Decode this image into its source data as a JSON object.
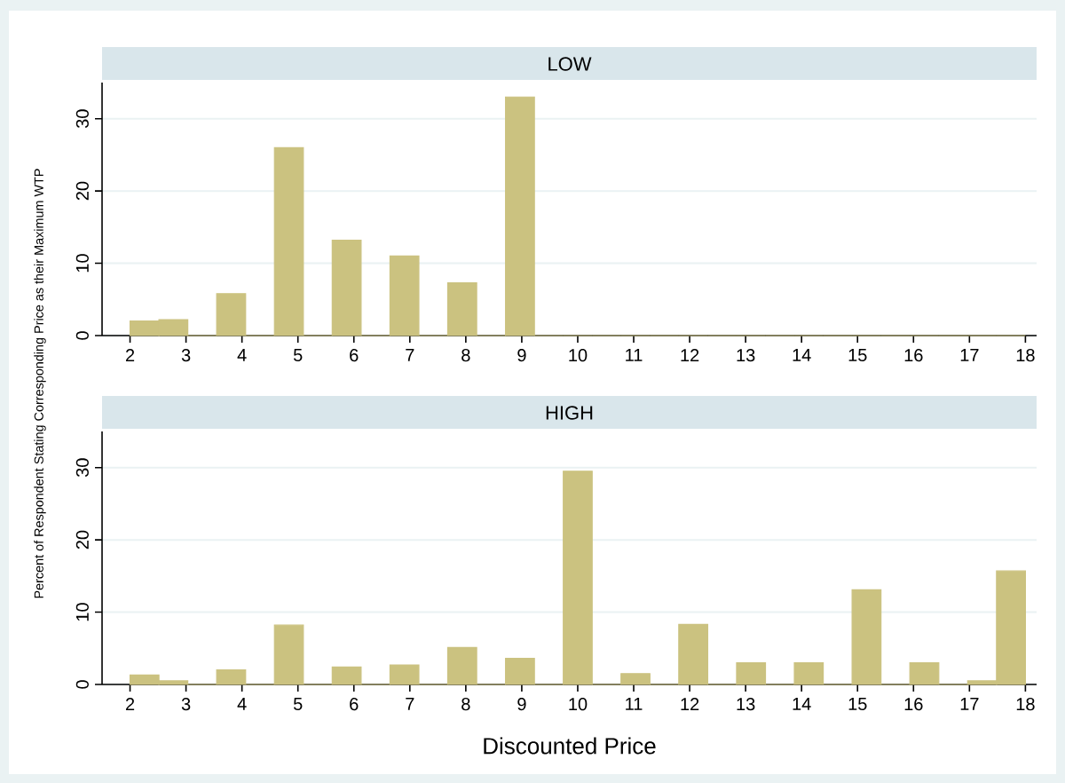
{
  "chart_data": [
    {
      "type": "histogram",
      "title": "LOW",
      "ylabel": "Percent of Respondent Stating Corresponding Price as their Maximum WTP",
      "bins": [
        2,
        2.516,
        3.032,
        3.548,
        4.065,
        4.581,
        5.097,
        5.613,
        6.129,
        6.645,
        7.161,
        7.677,
        8.194,
        8.71,
        9.226,
        9.742,
        10.258,
        10.774,
        11.29,
        11.806,
        12.323,
        12.839,
        13.355,
        13.871,
        14.387,
        14.903,
        15.419,
        15.935,
        16.452,
        16.968,
        17.484,
        18
      ],
      "values": [
        2.0,
        2.2,
        0,
        5.8,
        0,
        26.0,
        0,
        13.2,
        0,
        11.0,
        0,
        7.3,
        0,
        33.0,
        0,
        0,
        0,
        0,
        0,
        0,
        0,
        0,
        0,
        0,
        0,
        0,
        0,
        0,
        0,
        0,
        0
      ],
      "color": "#cbc280",
      "xlim": [
        1.5,
        18.2
      ],
      "ylim": [
        0,
        35
      ],
      "xticks": [
        2,
        3,
        4,
        5,
        6,
        7,
        8,
        9,
        10,
        11,
        12,
        13,
        14,
        15,
        16,
        17,
        18
      ],
      "yticks": [
        0,
        10,
        20,
        30
      ],
      "grid": "y"
    },
    {
      "type": "histogram",
      "title": "HIGH",
      "xlabel": "Discounted Price",
      "bins": [
        2,
        2.516,
        3.032,
        3.548,
        4.065,
        4.581,
        5.097,
        5.613,
        6.129,
        6.645,
        7.161,
        7.677,
        8.194,
        8.71,
        9.226,
        9.742,
        10.258,
        10.774,
        11.29,
        11.806,
        12.323,
        12.839,
        13.355,
        13.871,
        14.387,
        14.903,
        15.419,
        15.935,
        16.452,
        16.968,
        17.484,
        18
      ],
      "values": [
        1.3,
        0.5,
        0,
        2.0,
        0,
        8.2,
        0,
        2.4,
        0,
        2.7,
        0,
        5.1,
        0,
        3.6,
        0,
        29.5,
        0,
        1.5,
        0,
        8.3,
        0,
        3.0,
        0,
        3.0,
        0,
        13.1,
        0,
        3.0,
        0,
        0.5,
        15.7
      ],
      "color": "#cbc280",
      "xlim": [
        1.5,
        18.2
      ],
      "ylim": [
        0,
        35
      ],
      "xticks": [
        2,
        3,
        4,
        5,
        6,
        7,
        8,
        9,
        10,
        11,
        12,
        13,
        14,
        15,
        16,
        17,
        18
      ],
      "yticks": [
        0,
        10,
        20,
        30
      ],
      "grid": "y"
    }
  ]
}
